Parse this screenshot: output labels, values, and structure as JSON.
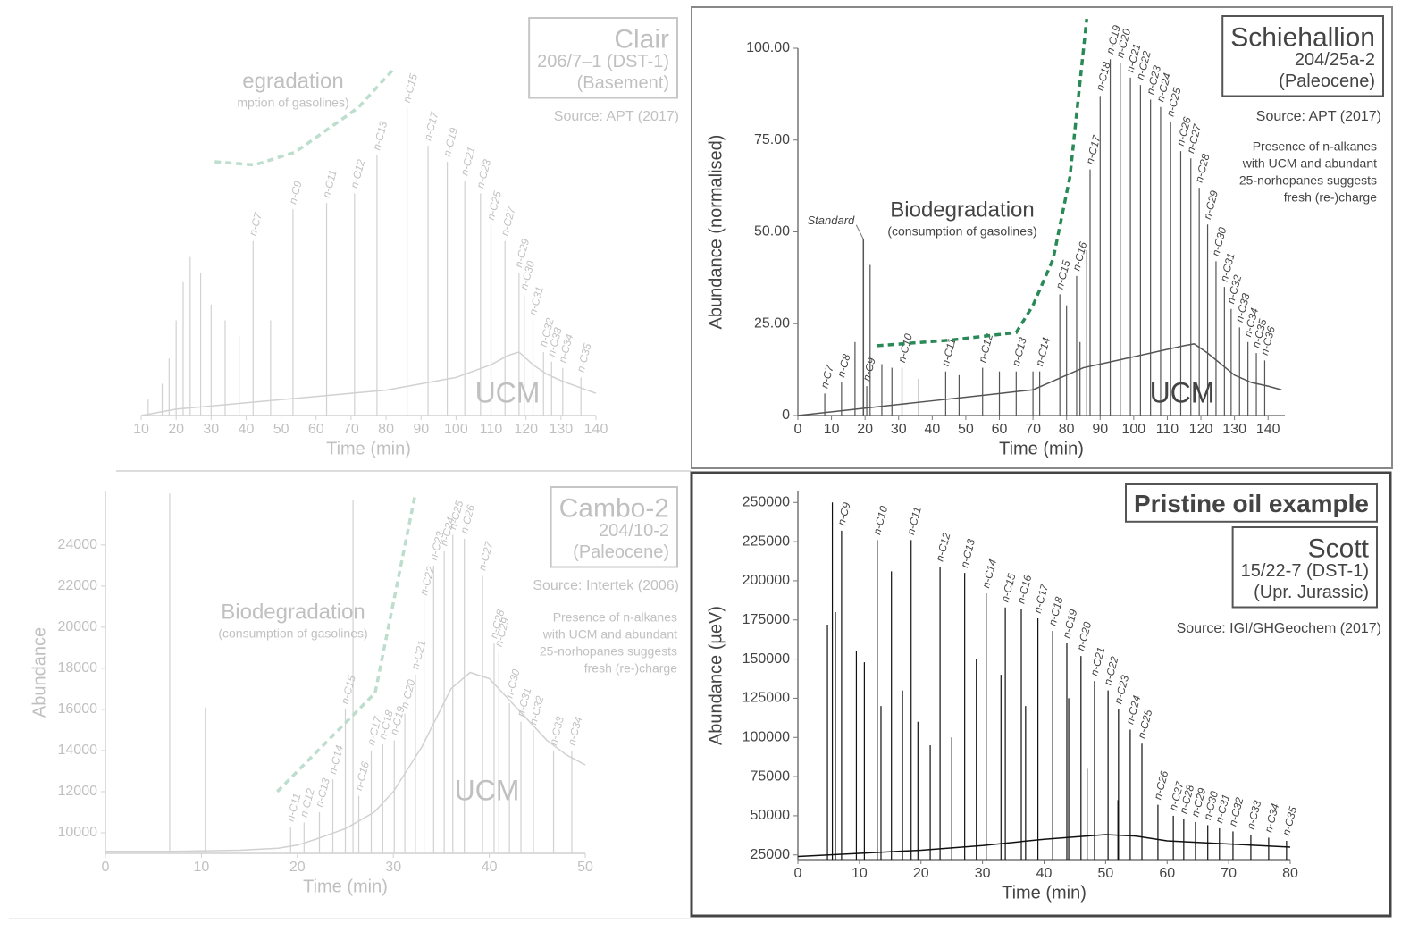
{
  "chart_data": [
    {
      "type": "line",
      "title": "Clair",
      "info": [
        "206/7–1 (DST-1)",
        "(Basement)"
      ],
      "source": "Source: APT (2017)",
      "xlabel": "Time (min)",
      "xlim": [
        10,
        140
      ],
      "xticks": [
        10,
        20,
        30,
        40,
        50,
        60,
        70,
        80,
        90,
        100,
        110,
        120,
        130,
        140
      ],
      "ylim": [
        0,
        100
      ],
      "color": "#777777",
      "series": [
        {
          "name": "UCM",
          "x": [
            10,
            20,
            30,
            40,
            50,
            60,
            70,
            80,
            90,
            100,
            105,
            110,
            115,
            118,
            122,
            126,
            130,
            135,
            140
          ],
          "values": [
            0,
            2,
            3,
            4,
            5,
            6,
            7,
            8,
            10,
            12,
            14,
            16,
            19,
            20,
            16,
            13,
            11,
            9,
            7
          ]
        }
      ],
      "minor_peaks": {
        "x": [
          12,
          16,
          18,
          20,
          22,
          24,
          27,
          30,
          34,
          38,
          47
        ],
        "values": [
          5,
          10,
          18,
          30,
          42,
          50,
          45,
          35,
          30,
          25,
          30
        ]
      },
      "peaks": {
        "x": [
          42,
          53.4,
          63,
          71,
          77.4,
          86,
          92,
          97.5,
          102.5,
          107,
          110,
          114,
          118,
          119.5,
          122,
          125,
          127.3,
          130.5,
          135.7
        ],
        "values": [
          55,
          65,
          67,
          70,
          82,
          97,
          85,
          80,
          74,
          70,
          60,
          55,
          45,
          38,
          30,
          20,
          17,
          15,
          12
        ],
        "labels": [
          "n-C7",
          "n-C9",
          "n-C11",
          "n-C12",
          "n-C13",
          "n-C15",
          "n-C17",
          "n-C19",
          "n-C21",
          "n-C23",
          "n-C25",
          "n-C27",
          "n-C29",
          "n-C30",
          "n-C31",
          "n-C32",
          "n-C33",
          "n-C34",
          "n-C35"
        ]
      },
      "trend": {
        "x": [
          31,
          42.4,
          54,
          72,
          82
        ],
        "y": [
          80,
          79,
          83,
          97,
          109
        ]
      },
      "trend_color": "#3a9a6a",
      "trend_label": "egradation",
      "trend_sublabel": "mption of gasolines)",
      "ucm_label": "UCM"
    },
    {
      "type": "line",
      "title": "Schiehallion",
      "info": [
        "204/25a-2",
        "(Paleocene)"
      ],
      "source": "Source: APT (2017)",
      "note": [
        "Presence of n-alkanes",
        "with UCM and abundant",
        "25-norhopanes suggests",
        "fresh (re-)charge"
      ],
      "xlabel": "Time (min)",
      "ylabel": "Abundance (normalised)",
      "xlim": [
        0,
        145
      ],
      "xticks": [
        0,
        10,
        20,
        30,
        40,
        50,
        60,
        70,
        80,
        90,
        100,
        110,
        120,
        130,
        140
      ],
      "ylim": [
        0,
        100
      ],
      "yticks": [
        0,
        {
          "value": 25,
          "label": "25.00"
        },
        {
          "value": 50,
          "label": "50.00"
        },
        {
          "value": 75,
          "label": "75.00"
        },
        {
          "value": 100,
          "label": "100.00"
        }
      ],
      "color": "#555555",
      "series": [
        {
          "name": "UCM",
          "x": [
            0,
            10,
            20,
            30,
            40,
            50,
            60,
            70,
            75,
            80,
            85,
            90,
            95,
            100,
            105,
            110,
            115,
            118,
            122,
            126,
            130,
            135,
            140,
            144
          ],
          "values": [
            0,
            1,
            2,
            3,
            4,
            5,
            6,
            7,
            9,
            11,
            13,
            14,
            15,
            16,
            17,
            18,
            19,
            19.5,
            17,
            14,
            11,
            9,
            8,
            7
          ]
        }
      ],
      "minor_peaks": {
        "x": [
          17,
          21.5,
          25,
          28,
          36,
          48,
          60,
          70,
          80,
          84,
          86
        ],
        "values": [
          20,
          41,
          14,
          13,
          10,
          11,
          12,
          12,
          30,
          20,
          45
        ]
      },
      "standard": {
        "label": "Standard",
        "x": 19.5,
        "value": 48
      },
      "peaks": {
        "x": [
          8,
          13,
          20.5,
          31,
          44,
          55,
          65,
          72,
          78,
          83,
          87,
          90,
          93,
          96,
          99,
          102,
          105,
          108,
          111,
          114,
          117,
          119.5,
          122,
          124.5,
          127,
          129,
          131.5,
          134,
          136.5,
          139
        ],
        "values": [
          6,
          9,
          8,
          13,
          12,
          13,
          12,
          12,
          33,
          38,
          67,
          87,
          97,
          96,
          92,
          90,
          86,
          84,
          80,
          72,
          70,
          62,
          52,
          42,
          35,
          29,
          24,
          20,
          17,
          15
        ],
        "labels": [
          "n-C7",
          "n-C8",
          "n-C9",
          "n-C10",
          "n-C11",
          "n-C12",
          "n-C13",
          "n-C14",
          "n-C15",
          "n-C16",
          "n-C17",
          "n-C18",
          "n-C19",
          "n-C20",
          "n-C21",
          "n-C22",
          "n-C23",
          "n-C24",
          "n-C25",
          "n-C26",
          "n-C27",
          "n-C28",
          "n-C29",
          "n-C30",
          "n-C31",
          "n-C32",
          "n-C33",
          "n-C34",
          "n-C35",
          "n-C36"
        ]
      },
      "trend": {
        "x": [
          23.6,
          45,
          65,
          70,
          76,
          81,
          86
        ],
        "y": [
          19,
          20.5,
          22.6,
          30,
          42.6,
          65,
          108
        ]
      },
      "trend_color": "#2a8a57",
      "trend_label": "Biodegradation",
      "trend_sublabel": "(consumption of gasolines)",
      "ucm_label": "UCM"
    },
    {
      "type": "line",
      "title": "Cambo-2",
      "info": [
        "204/10-2",
        "(Paleocene)"
      ],
      "source": "Source: Intertek (2006)",
      "note": [
        "Presence of n-alkanes",
        "with UCM and abundant",
        "25-norhopanes suggests",
        "fresh (re-)charge"
      ],
      "xlabel": "Time (min)",
      "ylabel": "Abundance",
      "xlim": [
        0,
        50
      ],
      "xticks": [
        0,
        10,
        20,
        30,
        40,
        50
      ],
      "ylim": [
        9000,
        26600
      ],
      "yticks": [
        10000,
        12000,
        14000,
        16000,
        18000,
        20000,
        22000,
        24000
      ],
      "color": "#777777",
      "series": [
        {
          "name": "UCM",
          "x": [
            0,
            6,
            7,
            14,
            18,
            20,
            22,
            25,
            28,
            30,
            33,
            36,
            38,
            40,
            42,
            44,
            46,
            48,
            50
          ],
          "values": [
            9100,
            9100,
            9100,
            9150,
            9250,
            9400,
            9700,
            10200,
            11000,
            12000,
            14200,
            17000,
            17800,
            17500,
            16500,
            15500,
            14500,
            13800,
            13300
          ]
        }
      ],
      "minor_peaks": {
        "x": [
          6.7,
          10.4,
          25.8
        ],
        "values": [
          26500,
          16100,
          26200
        ]
      },
      "peaks": {
        "x": [
          19.3,
          20.7,
          22.3,
          23.7,
          25,
          26.4,
          27.7,
          28.9,
          30.1,
          31.2,
          32.3,
          33.2,
          34.2,
          35.3,
          36.2,
          37.4,
          39.3,
          40.5,
          41,
          42.1,
          43.3,
          44.6,
          46.7,
          48.6
        ],
        "values": [
          10300,
          10500,
          11000,
          12600,
          16000,
          11800,
          14000,
          14300,
          14500,
          15800,
          17700,
          21300,
          23000,
          23700,
          24500,
          24300,
          22500,
          19200,
          18800,
          16300,
          15400,
          15000,
          14000,
          14000
        ],
        "labels": [
          "n-C11",
          "n-C12",
          "n-C13",
          "n-C14",
          "n-C15",
          "n-C16",
          "n-C17",
          "n-C18",
          "n-C19",
          "n-C20",
          "n-C21",
          "n-C22",
          "n-C23",
          "n-C24",
          "n-C25",
          "n-C26",
          "n-C27",
          "n-C28",
          "n-C29",
          "n-C30",
          "n-C31",
          "n-C32",
          "n-C33",
          "n-C34"
        ]
      },
      "trend": {
        "x": [
          17.9,
          28.1,
          32.3
        ],
        "y": [
          12000,
          16800,
          26500
        ]
      },
      "trend_color": "#3a9a6a",
      "trend_label": "Biodegradation",
      "trend_sublabel": "(consumption of gasolines)",
      "ucm_label": "UCM"
    },
    {
      "type": "line",
      "header": "Pristine oil example",
      "title": "Scott",
      "info": [
        "15/22-7 (DST-1)",
        "(Upr. Jurassic)"
      ],
      "source": "Source: IGI/GHGeochem (2017)",
      "xlabel": "Time (min)",
      "ylabel": "Abundance (µeV)",
      "xlim": [
        0,
        80
      ],
      "xticks": [
        0,
        10,
        20,
        30,
        40,
        50,
        60,
        70,
        80
      ],
      "ylim": [
        22000,
        257000
      ],
      "yticks": [
        25000,
        50000,
        75000,
        100000,
        125000,
        150000,
        175000,
        200000,
        225000,
        250000
      ],
      "color": "#111111",
      "series": [
        {
          "name": "UCM",
          "x": [
            0,
            5,
            10,
            20,
            30,
            40,
            50,
            55,
            60,
            70,
            80
          ],
          "values": [
            24000,
            25000,
            26000,
            28000,
            31000,
            35000,
            38000,
            37000,
            34000,
            32000,
            30000
          ]
        }
      ],
      "minor_peaks": {
        "x": [
          4.8,
          5.6,
          6.1,
          9.5,
          10.8,
          13.5,
          15.2,
          17,
          19.5,
          21.5,
          25,
          29,
          33,
          37,
          44,
          47,
          52
        ],
        "values": [
          172000,
          250000,
          180000,
          155000,
          148000,
          120000,
          206000,
          130000,
          110000,
          95000,
          100000,
          150000,
          140000,
          120000,
          125000,
          80000,
          60000
        ]
      },
      "peaks": {
        "x": [
          7.1,
          12.9,
          18.4,
          23.1,
          27.1,
          30.6,
          33.7,
          36.3,
          39,
          41.4,
          43.7,
          46,
          48.2,
          50.4,
          52.1,
          54,
          55.9,
          58.5,
          61,
          62.7,
          64.6,
          66.6,
          68.5,
          70.7,
          73.6,
          76.5,
          79.4
        ],
        "values": [
          232000,
          226000,
          226000,
          209000,
          205000,
          192000,
          183000,
          182000,
          176000,
          168000,
          160000,
          152000,
          136000,
          130000,
          118000,
          105000,
          96000,
          57000,
          50000,
          48000,
          46000,
          44000,
          42000,
          40000,
          38000,
          36000,
          34000
        ],
        "labels": [
          "n-C9",
          "n-C10",
          "n-C11",
          "n-C12",
          "n-C13",
          "n-C14",
          "n-C15",
          "n-C16",
          "n-C17",
          "n-C18",
          "n-C19",
          "n-C20",
          "n-C21",
          "n-C22",
          "n-C23",
          "n-C24",
          "n-C25",
          "n-C26",
          "n-C27",
          "n-C28",
          "n-C29",
          "n-C30",
          "n-C31",
          "n-C32",
          "n-C33",
          "n-C34",
          "n-C35"
        ]
      }
    }
  ]
}
